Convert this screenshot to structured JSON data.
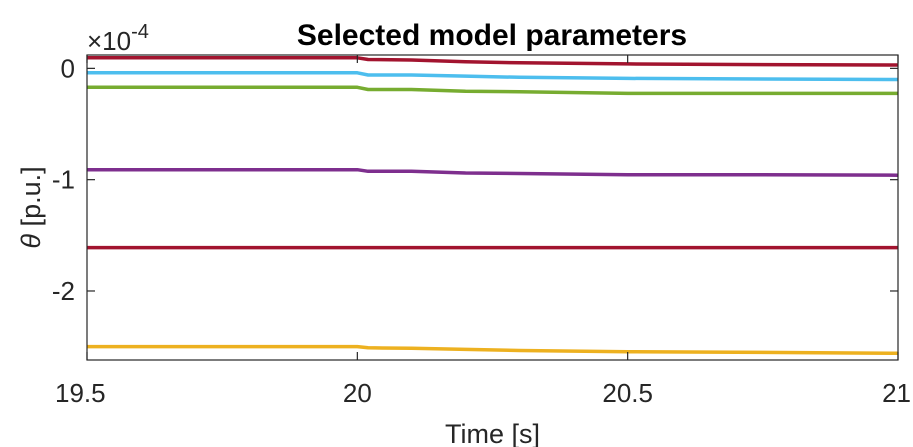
{
  "chart_data": {
    "type": "line",
    "title": "Selected model parameters",
    "xlabel": "Time [s]",
    "ylabel_symbol": "θ",
    "ylabel_unit": "[p.u.]",
    "y_exponent_prefix": "×10",
    "y_exponent": "-4",
    "xlim": [
      19.5,
      21
    ],
    "ylim": [
      -2.62,
      0.12
    ],
    "x_ticks": [
      19.5,
      20,
      20.5,
      21
    ],
    "x_tick_labels": [
      "19.5",
      "20",
      "20.5",
      "21"
    ],
    "y_ticks": [
      0,
      -1,
      -2
    ],
    "y_tick_labels": [
      "0",
      "-1",
      "-2"
    ],
    "grid": false,
    "series": [
      {
        "color": "#A2142F",
        "x": [
          19.5,
          20.0,
          20.02,
          20.1,
          20.2,
          20.3,
          20.5,
          20.7,
          21.0
        ],
        "y": [
          0.095,
          0.095,
          0.08,
          0.075,
          0.06,
          0.05,
          0.04,
          0.035,
          0.03
        ]
      },
      {
        "color": "#4DBEEE",
        "x": [
          19.5,
          20.0,
          20.02,
          20.1,
          20.2,
          20.3,
          20.5,
          20.7,
          21.0
        ],
        "y": [
          -0.04,
          -0.04,
          -0.06,
          -0.06,
          -0.07,
          -0.08,
          -0.09,
          -0.095,
          -0.1
        ]
      },
      {
        "color": "#77AC30",
        "x": [
          19.5,
          20.0,
          20.02,
          20.1,
          20.2,
          20.3,
          20.5,
          20.7,
          21.0
        ],
        "y": [
          -0.17,
          -0.17,
          -0.19,
          -0.19,
          -0.205,
          -0.21,
          -0.225,
          -0.225,
          -0.225
        ]
      },
      {
        "color": "#7E2F8E",
        "x": [
          19.5,
          20.0,
          20.02,
          20.1,
          20.2,
          20.3,
          20.5,
          20.7,
          21.0
        ],
        "y": [
          -0.91,
          -0.91,
          -0.925,
          -0.925,
          -0.94,
          -0.945,
          -0.955,
          -0.955,
          -0.96
        ]
      },
      {
        "color": "#A2142F",
        "x": [
          19.5,
          20.0,
          20.5,
          21.0
        ],
        "y": [
          -1.61,
          -1.61,
          -1.61,
          -1.61
        ]
      },
      {
        "color": "#EDB120",
        "x": [
          19.5,
          20.0,
          20.02,
          20.1,
          20.2,
          20.3,
          20.5,
          20.7,
          21.0
        ],
        "y": [
          -2.5,
          -2.5,
          -2.51,
          -2.515,
          -2.525,
          -2.535,
          -2.545,
          -2.55,
          -2.56
        ]
      }
    ]
  }
}
